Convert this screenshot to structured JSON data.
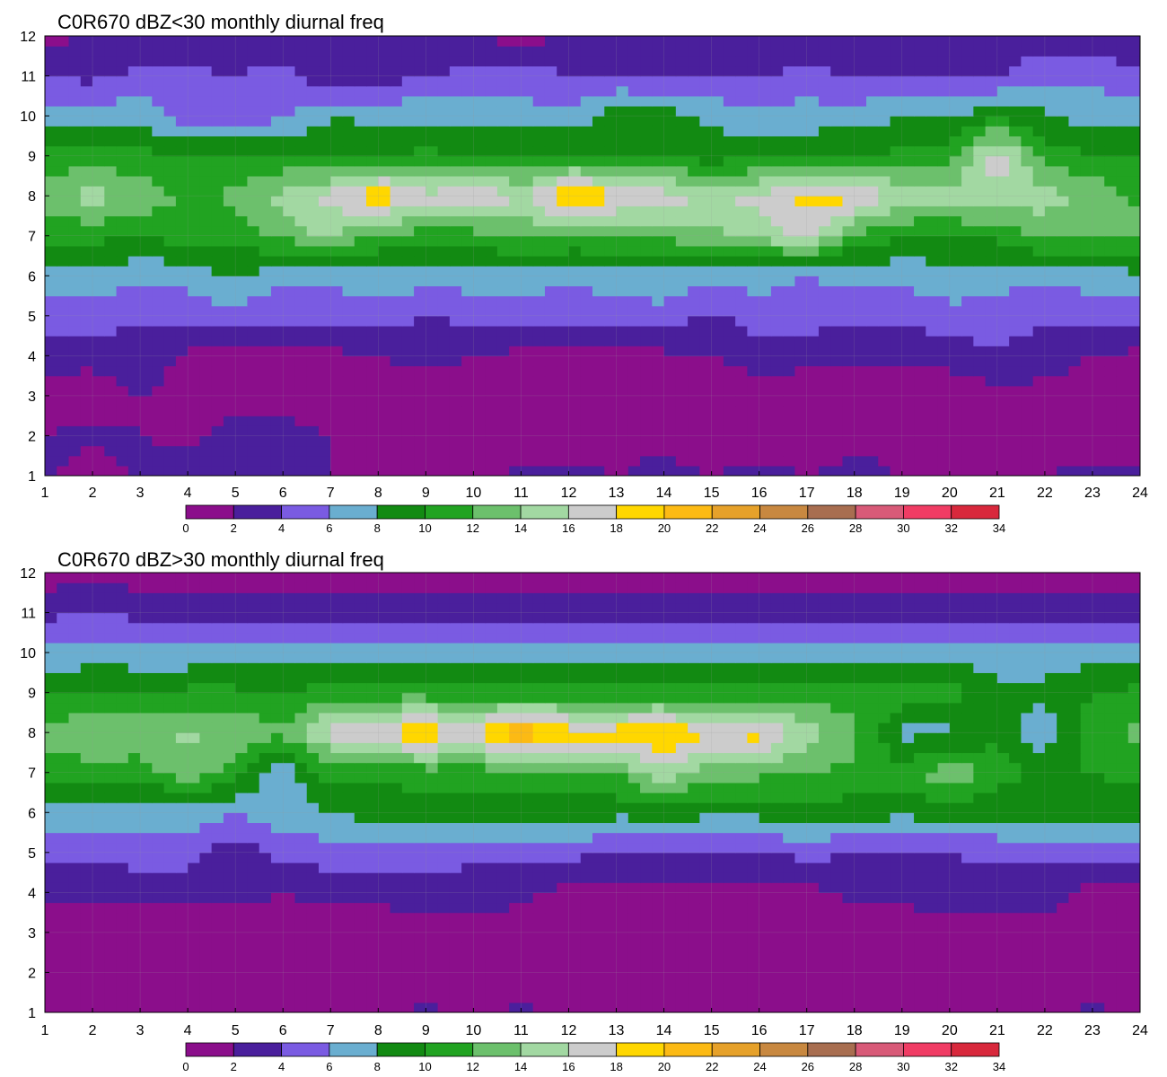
{
  "chart_data": [
    {
      "type": "heatmap",
      "title": "C0R670 dBZ<30 monthly diurnal freq",
      "xlabel": "",
      "ylabel": "",
      "xlim": [
        1,
        24
      ],
      "ylim": [
        1,
        12
      ],
      "x_ticks": [
        1,
        2,
        3,
        4,
        5,
        6,
        7,
        8,
        9,
        10,
        11,
        12,
        13,
        14,
        15,
        16,
        17,
        18,
        19,
        20,
        21,
        22,
        23,
        24
      ],
      "y_ticks": [
        1,
        2,
        3,
        4,
        5,
        6,
        7,
        8,
        9,
        10,
        11,
        12
      ],
      "grid": true,
      "legend": "colorbar-bottom",
      "colorbar_levels": [
        0,
        2,
        4,
        6,
        8,
        10,
        12,
        14,
        16,
        18,
        20,
        22,
        24,
        26,
        28,
        30,
        32,
        34
      ],
      "z": [
        [
          2.5,
          1.0,
          2.5,
          3.5,
          3.0,
          2.5,
          2.0,
          2.0,
          1.0,
          1.5,
          2.5,
          2.5,
          2.0,
          2.5,
          2.0,
          2.5,
          2.0,
          2.5,
          2.0,
          1.5,
          1.5,
          2.0,
          2.5,
          2.5
        ],
        [
          2.0,
          2.5,
          2.0,
          1.5,
          2.5,
          2.5,
          2.0,
          1.5,
          1.0,
          0.5,
          1.0,
          1.0,
          1.5,
          1.5,
          1.0,
          0.5,
          1.0,
          1.5,
          1.5,
          1.5,
          1.0,
          1.0,
          0.5,
          1.0
        ],
        [
          1.0,
          1.0,
          2.0,
          1.5,
          1.5,
          1.5,
          1.0,
          1.0,
          1.0,
          1.0,
          1.0,
          1.0,
          1.0,
          1.0,
          1.0,
          1.5,
          1.0,
          1.0,
          1.0,
          1.0,
          1.5,
          1.5,
          1.5,
          2.0
        ],
        [
          3.0,
          2.5,
          3.0,
          1.5,
          1.5,
          1.5,
          1.5,
          2.0,
          2.5,
          2.0,
          1.5,
          1.5,
          1.0,
          1.5,
          2.0,
          2.5,
          2.5,
          2.5,
          2.5,
          2.5,
          3.5,
          2.5,
          2.0,
          1.5
        ],
        [
          5.0,
          5.0,
          4.5,
          5.0,
          5.0,
          4.5,
          5.0,
          5.0,
          4.0,
          4.5,
          5.0,
          4.5,
          5.0,
          5.5,
          3.5,
          5.5,
          5.0,
          4.5,
          4.5,
          5.5,
          5.5,
          4.5,
          4.5,
          4.5
        ],
        [
          7.5,
          7.0,
          6.5,
          6.5,
          8.5,
          6.5,
          6.5,
          7.0,
          7.0,
          7.0,
          7.0,
          6.5,
          7.0,
          7.0,
          6.5,
          6.5,
          6.0,
          6.5,
          6.5,
          7.0,
          6.5,
          6.5,
          7.0,
          7.5
        ],
        [
          10.5,
          10.5,
          10.0,
          11.0,
          10.5,
          12.5,
          14.5,
          11.5,
          11.0,
          11.0,
          12.5,
          12.0,
          12.0,
          12.5,
          13.5,
          14.5,
          16.5,
          11.5,
          10.0,
          10.0,
          10.5,
          12.5,
          12.5,
          12.5
        ],
        [
          13.0,
          15.0,
          13.5,
          11.5,
          12.5,
          14.5,
          16.5,
          20.0,
          16.5,
          18.5,
          15.5,
          20.5,
          18.5,
          17.0,
          16.0,
          16.5,
          19.0,
          18.5,
          15.5,
          15.0,
          15.5,
          15.0,
          13.5,
          11.5
        ],
        [
          10.5,
          11.0,
          10.5,
          10.0,
          10.0,
          10.5,
          10.0,
          10.0,
          10.5,
          10.0,
          10.0,
          10.5,
          10.0,
          9.5,
          9.0,
          9.5,
          9.5,
          10.0,
          10.5,
          11.0,
          17.5,
          11.0,
          10.0,
          10.0
        ],
        [
          7.0,
          7.0,
          7.5,
          5.0,
          5.0,
          5.5,
          8.0,
          7.5,
          7.5,
          7.0,
          7.0,
          6.5,
          9.5,
          9.0,
          7.5,
          6.5,
          7.0,
          7.0,
          8.0,
          8.0,
          9.5,
          8.5,
          7.0,
          7.5
        ],
        [
          4.0,
          3.5,
          4.5,
          4.5,
          4.0,
          5.0,
          2.5,
          3.0,
          4.0,
          4.5,
          5.0,
          4.0,
          4.0,
          4.0,
          4.0,
          4.0,
          4.5,
          4.0,
          4.0,
          4.0,
          4.0,
          5.5,
          5.5,
          4.5
        ],
        [
          1.5,
          2.0,
          2.0,
          2.5,
          2.0,
          2.5,
          2.0,
          2.0,
          2.0,
          2.0,
          1.0,
          2.5,
          2.5,
          2.5,
          2.5,
          2.5,
          2.5,
          2.5,
          2.5,
          2.5,
          2.5,
          2.5,
          2.5,
          2.5
        ]
      ]
    },
    {
      "type": "heatmap",
      "title": "C0R670 dBZ>30 monthly diurnal freq",
      "xlabel": "",
      "ylabel": "",
      "xlim": [
        1,
        24
      ],
      "ylim": [
        1,
        12
      ],
      "x_ticks": [
        1,
        2,
        3,
        4,
        5,
        6,
        7,
        8,
        9,
        10,
        11,
        12,
        13,
        14,
        15,
        16,
        17,
        18,
        19,
        20,
        21,
        22,
        23,
        24
      ],
      "y_ticks": [
        1,
        2,
        3,
        4,
        5,
        6,
        7,
        8,
        9,
        10,
        11,
        12
      ],
      "grid": true,
      "legend": "colorbar-bottom",
      "colorbar_levels": [
        0,
        2,
        4,
        6,
        8,
        10,
        12,
        14,
        16,
        18,
        20,
        22,
        24,
        26,
        28,
        30,
        32,
        34
      ],
      "z": [
        [
          1.0,
          0.5,
          1.0,
          1.0,
          1.0,
          1.0,
          1.0,
          1.5,
          2.5,
          1.5,
          2.5,
          1.5,
          1.0,
          1.0,
          1.0,
          1.0,
          1.0,
          1.0,
          1.0,
          1.0,
          1.0,
          1.0,
          2.5,
          1.0
        ],
        [
          1.0,
          1.0,
          1.0,
          1.0,
          1.0,
          1.0,
          1.0,
          1.0,
          1.0,
          1.0,
          1.0,
          1.0,
          1.0,
          1.0,
          1.0,
          1.0,
          1.0,
          1.0,
          1.0,
          1.0,
          1.0,
          1.0,
          1.0,
          1.0
        ],
        [
          1.0,
          1.0,
          1.0,
          1.0,
          1.0,
          1.0,
          1.0,
          1.0,
          1.0,
          1.0,
          1.0,
          1.0,
          1.0,
          1.0,
          1.0,
          1.0,
          1.0,
          1.0,
          1.0,
          1.0,
          1.0,
          1.0,
          1.0,
          1.0
        ],
        [
          2.5,
          2.5,
          2.5,
          2.5,
          2.5,
          2.0,
          2.5,
          2.5,
          3.0,
          3.0,
          2.5,
          1.5,
          1.0,
          1.0,
          1.0,
          1.0,
          1.5,
          2.5,
          2.5,
          3.0,
          3.0,
          3.0,
          1.0,
          1.5
        ],
        [
          4.5,
          4.5,
          5.0,
          5.0,
          2.5,
          5.0,
          5.0,
          5.0,
          5.0,
          4.5,
          4.5,
          4.5,
          4.0,
          4.0,
          4.0,
          4.0,
          4.5,
          4.0,
          4.0,
          4.0,
          4.5,
          4.5,
          4.5,
          5.0
        ],
        [
          7.5,
          7.5,
          7.0,
          7.0,
          6.0,
          7.0,
          8.0,
          9.0,
          8.5,
          8.5,
          8.5,
          9.0,
          8.5,
          9.0,
          8.5,
          8.5,
          9.0,
          9.0,
          8.5,
          9.0,
          8.5,
          9.5,
          9.0,
          8.5
        ],
        [
          11.0,
          11.0,
          11.0,
          13.0,
          11.0,
          6.5,
          11.0,
          10.5,
          11.0,
          11.0,
          11.5,
          11.5,
          12.0,
          15.5,
          12.5,
          12.5,
          12.0,
          11.5,
          11.0,
          13.5,
          11.0,
          9.5,
          10.0,
          10.5
        ],
        [
          13.0,
          14.0,
          13.5,
          14.5,
          13.5,
          12.5,
          16.5,
          18.5,
          19.5,
          18.0,
          22.0,
          19.0,
          19.0,
          20.0,
          18.0,
          19.0,
          15.0,
          12.5,
          7.5,
          7.5,
          9.5,
          6.5,
          11.5,
          12.5
        ],
        [
          9.5,
          10.0,
          9.5,
          10.5,
          10.5,
          10.0,
          11.0,
          11.0,
          11.0,
          10.5,
          10.5,
          10.5,
          10.5,
          10.5,
          10.5,
          10.5,
          11.0,
          11.0,
          11.5,
          11.0,
          8.5,
          8.5,
          10.0,
          10.5
        ],
        [
          6.5,
          7.0,
          7.0,
          6.5,
          6.5,
          7.0,
          6.5,
          7.5,
          6.5,
          7.0,
          7.0,
          7.0,
          6.5,
          6.5,
          7.0,
          7.5,
          7.0,
          7.0,
          7.0,
          7.0,
          7.0,
          7.0,
          7.0,
          7.0
        ],
        [
          3.5,
          4.0,
          3.5,
          3.5,
          3.5,
          3.5,
          3.5,
          3.0,
          3.5,
          3.0,
          3.0,
          3.0,
          3.0,
          3.5,
          3.5,
          3.0,
          3.0,
          3.5,
          3.0,
          3.5,
          3.5,
          3.0,
          3.0,
          3.5
        ],
        [
          1.0,
          1.0,
          1.0,
          1.0,
          1.0,
          1.0,
          1.0,
          1.0,
          1.0,
          1.0,
          1.0,
          1.0,
          1.0,
          1.0,
          1.0,
          1.0,
          1.0,
          1.0,
          1.0,
          1.0,
          1.0,
          1.0,
          1.0,
          1.0
        ]
      ]
    }
  ],
  "colors": {
    "levels": [
      "#8b0e8b",
      "#4a1f9c",
      "#7a5be2",
      "#6aaed0",
      "#128a12",
      "#21a321",
      "#6cc06c",
      "#a2d8a2",
      "#cccccc",
      "#ffd700",
      "#fcba14",
      "#e6a12a",
      "#c88840",
      "#a86e50",
      "#d85a78",
      "#f03c64",
      "#d8283c"
    ],
    "contour": "#f0a020"
  }
}
